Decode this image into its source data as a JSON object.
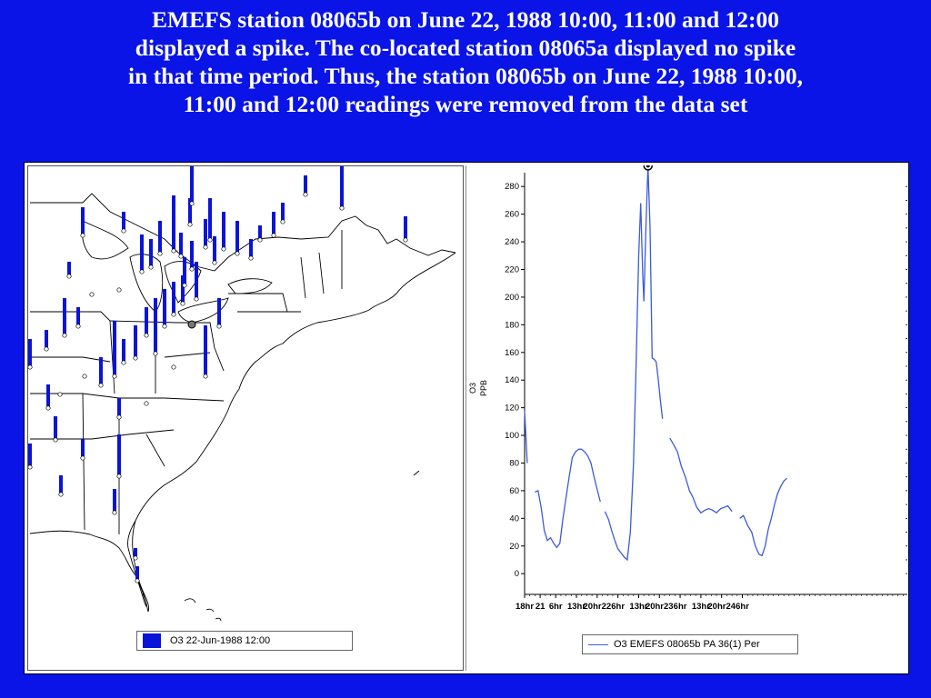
{
  "headline": {
    "lines": [
      "EMEFS station 08065b on June 22, 1988 10:00, 11:00 and 12:00",
      "displayed a spike.  The co-located station 08065a displayed no spike",
      "in that time period.  Thus, the station 08065b on June 22, 1988 10:00,",
      "11:00 and 12:00 readings were removed from the data set"
    ]
  },
  "map": {
    "legend_label": "O3 22-Jun-1988 12:00",
    "bar_color": "#0a14d8"
  },
  "chart_data": {
    "type": "line",
    "ylabel": "O3\nPPB",
    "ylim": [
      -15,
      290
    ],
    "yticks": [
      0,
      20,
      40,
      60,
      80,
      100,
      120,
      140,
      160,
      180,
      200,
      220,
      240,
      260,
      280
    ],
    "xlim": [
      0,
      74
    ],
    "xticks": [
      {
        "x": 0,
        "label": "18hr"
      },
      {
        "x": 3,
        "label": "21"
      },
      {
        "x": 6,
        "label": "6hr"
      },
      {
        "x": 10,
        "label": "13hr"
      },
      {
        "x": 14,
        "label": "20hr22"
      },
      {
        "x": 18,
        "label": "6hr"
      },
      {
        "x": 22,
        "label": "13hr"
      },
      {
        "x": 26,
        "label": "20hr23"
      },
      {
        "x": 30,
        "label": "6hr"
      },
      {
        "x": 34,
        "label": "13hr"
      },
      {
        "x": 38,
        "label": "20hr24"
      },
      {
        "x": 42,
        "label": "6hr"
      }
    ],
    "series": [
      {
        "name": "O3 EMEFS 08065b PA 36(1) Per",
        "color": "#3b5bdb",
        "segments": [
          [
            [
              0,
              118
            ],
            [
              0.5,
              80
            ]
          ],
          [
            [
              2,
              59
            ],
            [
              2.6,
              60
            ],
            [
              3.2,
              48
            ],
            [
              3.8,
              31
            ],
            [
              4.4,
              24
            ],
            [
              5,
              26
            ],
            [
              5.6,
              22
            ],
            [
              6.2,
              19
            ],
            [
              6.8,
              22
            ],
            [
              7.4,
              40
            ],
            [
              8,
              55
            ],
            [
              8.6,
              70
            ],
            [
              9.2,
              84
            ],
            [
              9.8,
              88
            ],
            [
              10.4,
              90
            ],
            [
              11,
              90
            ],
            [
              11.6,
              88
            ],
            [
              12.2,
              85
            ],
            [
              12.8,
              80
            ],
            [
              13.4,
              70
            ],
            [
              14,
              61
            ],
            [
              14.6,
              52
            ]
          ],
          [
            [
              15.5,
              45
            ],
            [
              16.2,
              39
            ],
            [
              16.8,
              31
            ],
            [
              17.4,
              24
            ],
            [
              18,
              18
            ],
            [
              18.6,
              15
            ],
            [
              19.2,
              12
            ],
            [
              19.8,
              10
            ],
            [
              20.4,
              30
            ],
            [
              21,
              80
            ],
            [
              21.5,
              150
            ],
            [
              22,
              230
            ],
            [
              22.4,
              268
            ],
            [
              22.8,
              215
            ],
            [
              23,
              197
            ],
            [
              23.4,
              250
            ],
            [
              23.8,
              295
            ],
            [
              24.2,
              250
            ],
            [
              24.6,
              156
            ],
            [
              25,
              155
            ],
            [
              25.4,
              153
            ],
            [
              25.8,
              140
            ],
            [
              26.2,
              125
            ],
            [
              26.6,
              112
            ]
          ],
          [
            [
              28,
              98
            ],
            [
              28.8,
              93
            ],
            [
              29.5,
              88
            ],
            [
              30.2,
              78
            ],
            [
              31,
              70
            ],
            [
              31.8,
              60
            ],
            [
              32.5,
              55
            ],
            [
              33.2,
              48
            ],
            [
              34,
              44
            ],
            [
              34.8,
              46
            ],
            [
              35.5,
              47
            ],
            [
              36.2,
              46
            ],
            [
              37,
              44
            ],
            [
              37.8,
              47
            ],
            [
              38.5,
              48
            ],
            [
              39.2,
              49
            ],
            [
              40,
              45
            ]
          ],
          [
            [
              41.5,
              40
            ],
            [
              42.2,
              42
            ],
            [
              43,
              35
            ],
            [
              43.8,
              30
            ],
            [
              44.5,
              20
            ],
            [
              45.2,
              14
            ],
            [
              45.8,
              13
            ],
            [
              46.4,
              20
            ],
            [
              47,
              32
            ],
            [
              47.6,
              40
            ],
            [
              48.2,
              50
            ],
            [
              48.8,
              58
            ],
            [
              49.4,
              63
            ],
            [
              50,
              67
            ],
            [
              50.6,
              69
            ]
          ]
        ],
        "marker": {
          "x": 23.8,
          "y": 295
        }
      }
    ],
    "legend_label": "O3 EMEFS 08065b PA 36(1) Per"
  }
}
